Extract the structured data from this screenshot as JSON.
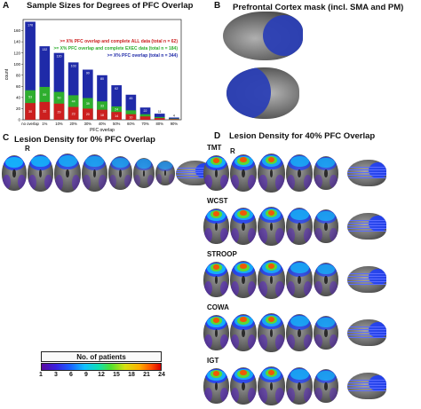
{
  "panels": {
    "a": {
      "letter": "A",
      "title": "Sample Sizes for Degrees of PFC Overlap"
    },
    "b": {
      "letter": "B",
      "title": "Prefrontal Cortex mask (incl. SMA and PM)"
    },
    "c": {
      "letter": "C",
      "title": "Lesion Density for 0% PFC Overlap",
      "r_label": "R"
    },
    "d": {
      "letter": "D",
      "title": "Lesion Density for 40% PFC Overlap",
      "r_label": "R"
    }
  },
  "tasks": [
    "TMT",
    "WCST",
    "STROOP",
    "COWA",
    "IGT"
  ],
  "colorbar": {
    "title": "No. of patients",
    "ticks": [
      "1",
      "3",
      "6",
      "9",
      "12",
      "15",
      "18",
      "21",
      "24"
    ]
  },
  "colors": {
    "all": "#cc1f1f",
    "exec": "#2eae2e",
    "pfc": "#1f2aa8"
  },
  "chart_data": {
    "type": "bar",
    "title": "Sample Sizes for Degrees of PFC Overlap",
    "xlabel": "PFC overlap",
    "ylabel": "count",
    "ylim": [
      0,
      180
    ],
    "yticks": [
      0,
      20,
      40,
      60,
      80,
      100,
      120,
      140,
      160
    ],
    "categories": [
      "no overlap",
      "1%",
      "10%",
      "20%",
      "30%",
      "40%",
      "50%",
      "60%",
      "70%",
      "80%",
      "90%"
    ],
    "legend": [
      ">= X% PFC overlap and complete ALL data (total n = 62)",
      ">= X% PFC overlap and complete EXEC data (total n = 184)",
      ">= X% PFC overlap (total n = 344)"
    ],
    "series": [
      {
        "name": ">= X% PFC overlap and complete ALL data (total n = 62)",
        "values": [
          30,
          32,
          29,
          23,
          20,
          18,
          14,
          10,
          6,
          3,
          1
        ]
      },
      {
        "name": ">= X% PFC overlap and complete EXEC data (total n = 184)",
        "values": [
          53,
          59,
          50,
          44,
          39,
          33,
          24,
          17,
          10,
          5,
          2
        ]
      },
      {
        "name": ">= X% PFC overlap (total n = 344)",
        "values": [
          176,
          132,
          120,
          103,
          90,
          80,
          62,
          45,
          22,
          11,
          4
        ]
      }
    ]
  }
}
